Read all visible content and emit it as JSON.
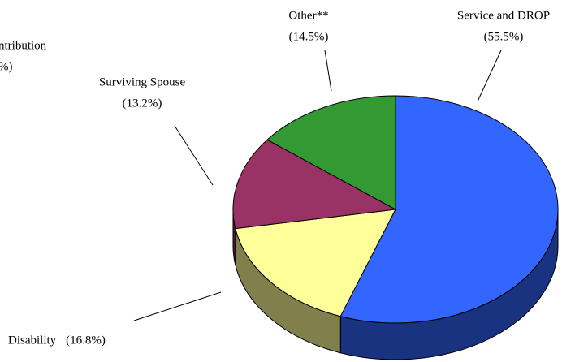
{
  "chart_data": {
    "type": "pie",
    "labels": [
      "Service and DROP",
      "Disability",
      "Surviving Spouse",
      "Other**"
    ],
    "values": [
      55.5,
      16.8,
      13.2,
      14.5
    ],
    "value_labels": [
      "(55.5%)",
      "(16.8%)",
      "(13.2%)",
      "(14.5%)"
    ],
    "colors": [
      "#3366ff",
      "#ffff99",
      "#993366",
      "#339933"
    ],
    "annotations": [
      "ntribution",
      "%)"
    ]
  }
}
